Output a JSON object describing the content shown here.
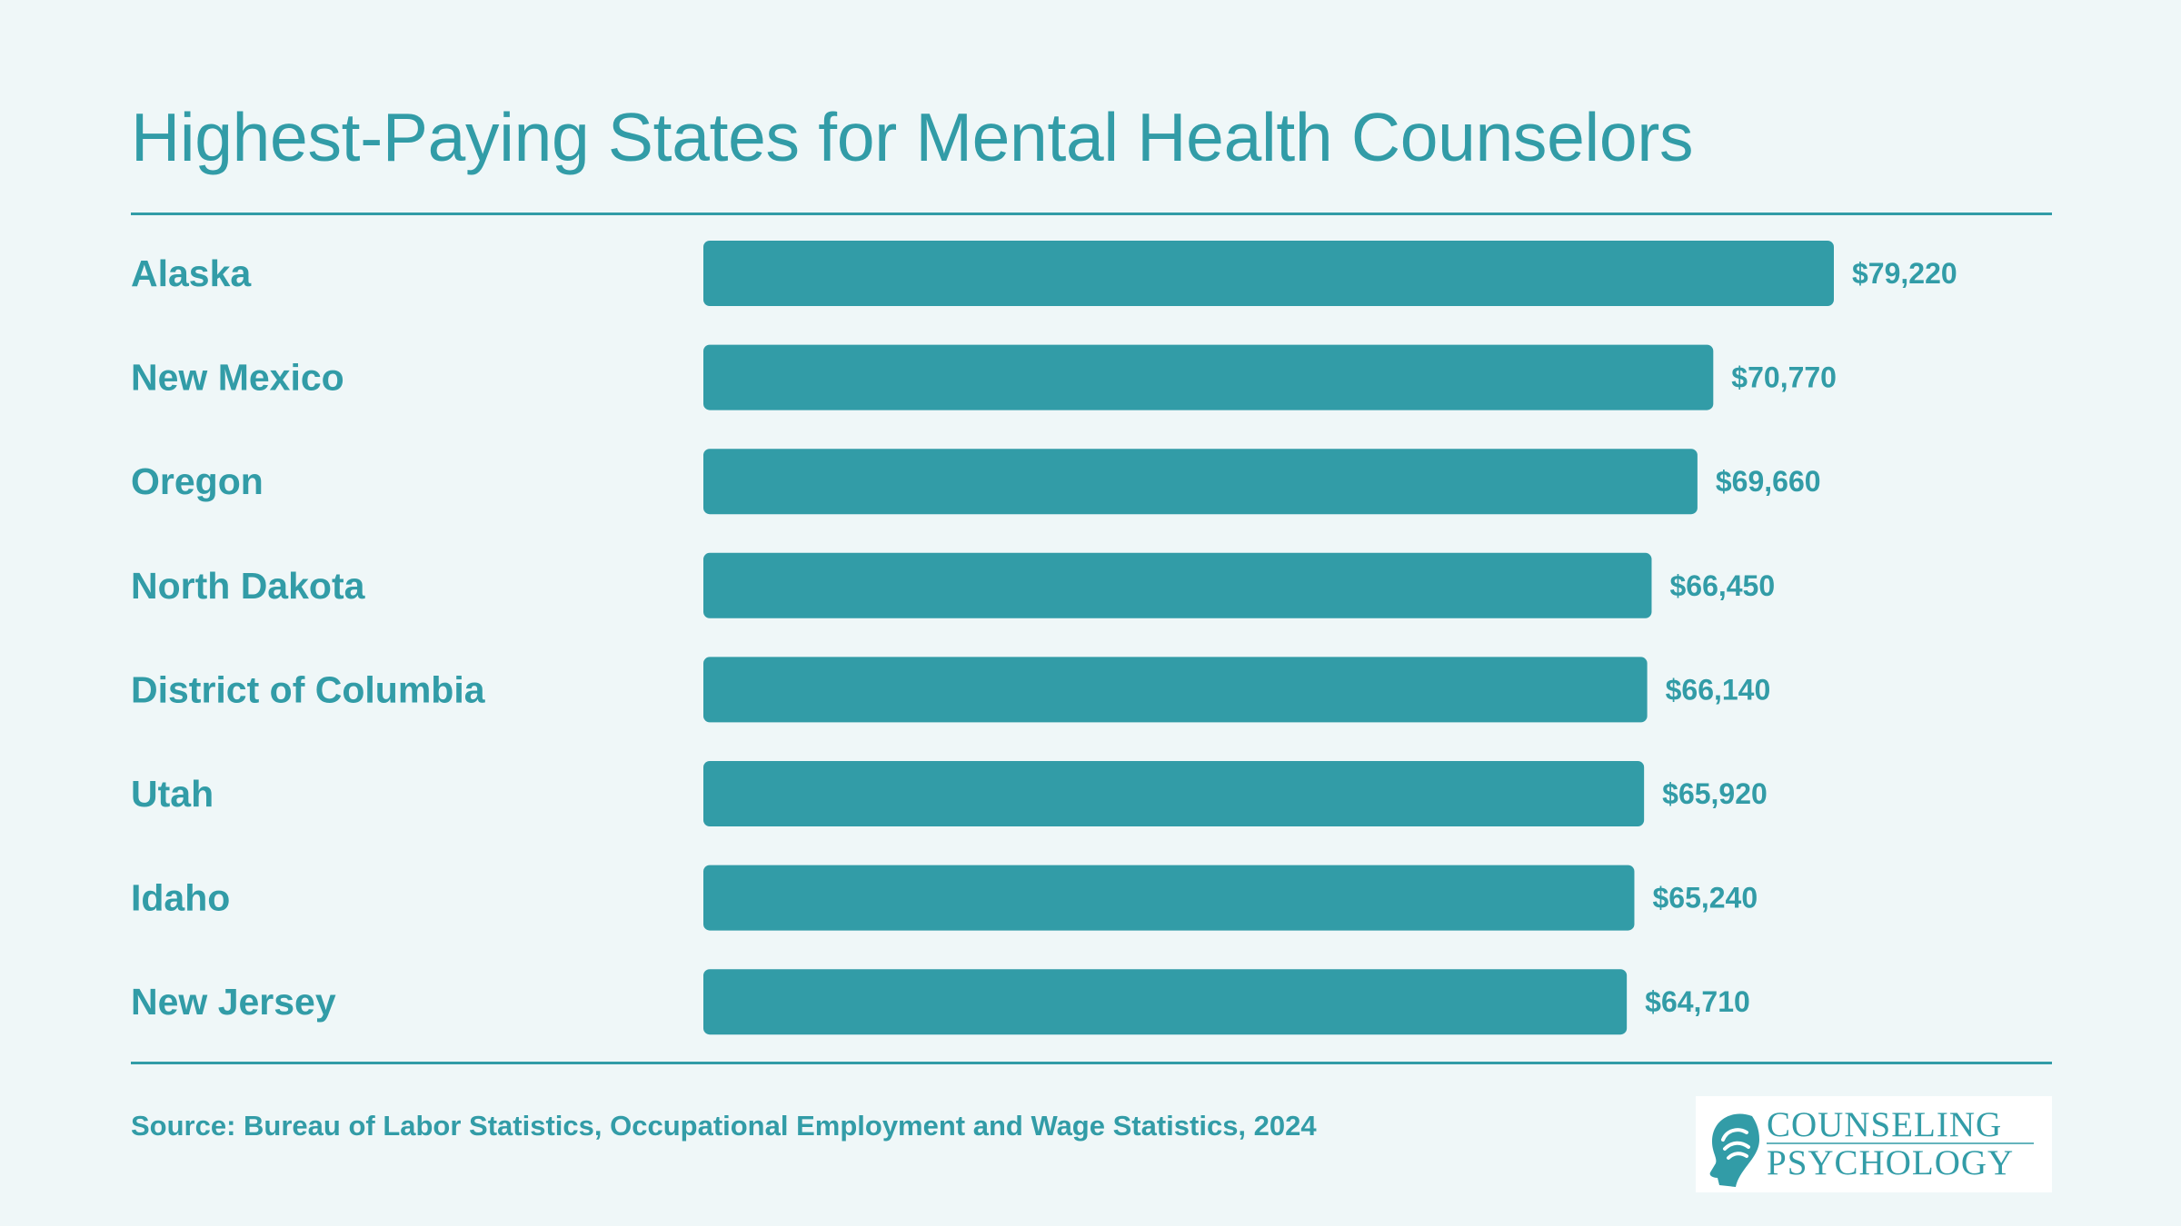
{
  "chart_data": {
    "type": "bar",
    "orientation": "horizontal",
    "title": "Highest-Paying States for Mental Health Counselors",
    "categories": [
      "Alaska",
      "New Mexico",
      "Oregon",
      "North Dakota",
      "District of Columbia",
      "Utah",
      "Idaho",
      "New Jersey"
    ],
    "values": [
      79220,
      70770,
      69660,
      66450,
      66140,
      65920,
      65240,
      64710
    ],
    "value_labels": [
      "$79,220",
      "$70,770",
      "$69,660",
      "$66,450",
      "$66,140",
      "$65,920",
      "$65,240",
      "$64,710"
    ],
    "xlim": [
      0,
      79220
    ],
    "grid": false,
    "legend": "none",
    "bar_color": "#329ca7"
  },
  "source": "Source: Bureau of Labor Statistics, Occupational Employment and Wage Statistics, 2024",
  "logo": {
    "line1": "COUNSELING",
    "line2": "PSYCHOLOGY"
  },
  "colors": {
    "background": "#eff7f8",
    "accent": "#329ca7"
  }
}
